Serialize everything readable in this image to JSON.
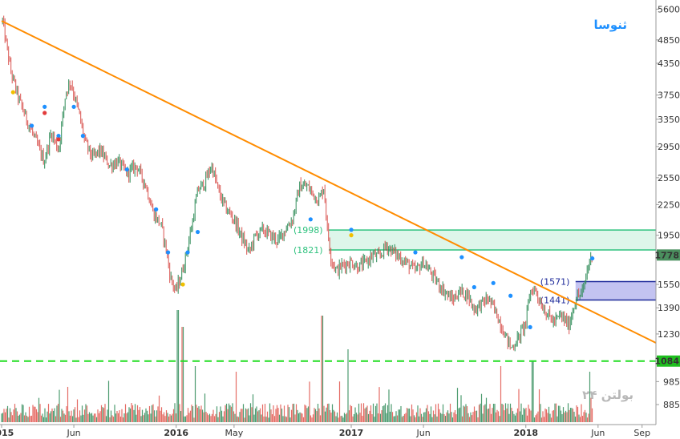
{
  "chart_data": {
    "type": "candlestick",
    "title": "",
    "watermark_top": "ثنوسا",
    "watermark_bottom": "بولتن ۲۴",
    "x_axis": {
      "type": "date",
      "start": "2015-01-01",
      "end": "2018-09-30",
      "ticks": [
        {
          "date": "2015-01-01",
          "label": "2015"
        },
        {
          "date": "2015-06-01",
          "label": "Jun"
        },
        {
          "date": "2016-01-01",
          "label": "2016"
        },
        {
          "date": "2016-05-01",
          "label": "May"
        },
        {
          "date": "2017-01-01",
          "label": "2017"
        },
        {
          "date": "2017-06-01",
          "label": "Jun"
        },
        {
          "date": "2018-01-01",
          "label": "2018"
        },
        {
          "date": "2018-06-01",
          "label": "Jun"
        },
        {
          "date": "2018-09-01",
          "label": "Sep"
        }
      ]
    },
    "y_axis": {
      "scale": "log",
      "range": [
        800,
        5800
      ],
      "ticks": [
        5600,
        4850,
        4350,
        3750,
        3350,
        2950,
        2550,
        2250,
        1950,
        1550,
        1390,
        1230,
        985,
        885
      ]
    },
    "price_series": {
      "name": "",
      "up_color": "#2e8b57",
      "down_color": "#d9534f",
      "points": [
        [
          "2015-01-03",
          5300
        ],
        [
          "2015-01-20",
          4200
        ],
        [
          "2015-02-05",
          3700
        ],
        [
          "2015-02-25",
          3300
        ],
        [
          "2015-03-15",
          3000
        ],
        [
          "2015-03-31",
          2750
        ],
        [
          "2015-04-15",
          3150
        ],
        [
          "2015-04-30",
          2900
        ],
        [
          "2015-05-15",
          3800
        ],
        [
          "2015-05-25",
          4000
        ],
        [
          "2015-06-10",
          3500
        ],
        [
          "2015-06-25",
          3000
        ],
        [
          "2015-07-10",
          2800
        ],
        [
          "2015-07-25",
          2900
        ],
        [
          "2015-08-15",
          2700
        ],
        [
          "2015-09-01",
          2750
        ],
        [
          "2015-09-20",
          2600
        ],
        [
          "2015-10-10",
          2700
        ],
        [
          "2015-10-30",
          2450
        ],
        [
          "2015-11-15",
          2150
        ],
        [
          "2015-11-30",
          2050
        ],
        [
          "2015-12-10",
          1850
        ],
        [
          "2015-12-20",
          1600
        ],
        [
          "2015-12-31",
          1500
        ],
        [
          "2016-01-10",
          1600
        ],
        [
          "2016-01-20",
          1750
        ],
        [
          "2016-02-01",
          2000
        ],
        [
          "2016-02-15",
          2400
        ],
        [
          "2016-03-01",
          2500
        ],
        [
          "2016-03-15",
          2700
        ],
        [
          "2016-04-01",
          2350
        ],
        [
          "2016-04-15",
          2200
        ],
        [
          "2016-05-01",
          2100
        ],
        [
          "2016-05-15",
          1950
        ],
        [
          "2016-06-01",
          1800
        ],
        [
          "2016-06-15",
          1950
        ],
        [
          "2016-07-01",
          2000
        ],
        [
          "2016-07-15",
          1950
        ],
        [
          "2016-08-01",
          1900
        ],
        [
          "2016-08-15",
          2000
        ],
        [
          "2016-08-31",
          2100
        ],
        [
          "2016-09-15",
          2450
        ],
        [
          "2016-10-01",
          2450
        ],
        [
          "2016-10-15",
          2350
        ],
        [
          "2016-10-25",
          2300
        ],
        [
          "2016-11-05",
          2450
        ],
        [
          "2016-11-12",
          2000
        ],
        [
          "2016-11-20",
          1750
        ],
        [
          "2016-12-01",
          1650
        ],
        [
          "2016-12-15",
          1700
        ],
        [
          "2017-01-01",
          1720
        ],
        [
          "2017-01-15",
          1680
        ],
        [
          "2017-02-01",
          1720
        ],
        [
          "2017-02-15",
          1780
        ],
        [
          "2017-03-01",
          1760
        ],
        [
          "2017-03-15",
          1860
        ],
        [
          "2017-03-31",
          1800
        ],
        [
          "2017-04-15",
          1750
        ],
        [
          "2017-05-01",
          1700
        ],
        [
          "2017-05-15",
          1650
        ],
        [
          "2017-06-01",
          1720
        ],
        [
          "2017-06-15",
          1640
        ],
        [
          "2017-07-01",
          1560
        ],
        [
          "2017-07-15",
          1500
        ],
        [
          "2017-08-01",
          1440
        ],
        [
          "2017-08-15",
          1500
        ],
        [
          "2017-09-01",
          1480
        ],
        [
          "2017-09-15",
          1380
        ],
        [
          "2017-10-01",
          1420
        ],
        [
          "2017-10-15",
          1450
        ],
        [
          "2017-11-01",
          1350
        ],
        [
          "2017-11-15",
          1250
        ],
        [
          "2017-12-01",
          1150
        ],
        [
          "2017-12-15",
          1200
        ],
        [
          "2018-01-01",
          1300
        ],
        [
          "2018-01-10",
          1500
        ],
        [
          "2018-01-20",
          1520
        ],
        [
          "2018-02-01",
          1420
        ],
        [
          "2018-02-15",
          1350
        ],
        [
          "2018-03-01",
          1300
        ],
        [
          "2018-03-15",
          1340
        ],
        [
          "2018-04-01",
          1280
        ],
        [
          "2018-04-15",
          1450
        ],
        [
          "2018-05-01",
          1500
        ],
        [
          "2018-05-10",
          1680
        ],
        [
          "2018-05-20",
          1778
        ]
      ]
    },
    "volume_series": {
      "name": "",
      "up_color": "#2e8b57",
      "down_color": "#e0524a",
      "spikes": [
        [
          "2016-01-05",
          1.0
        ],
        [
          "2016-01-15",
          0.85
        ],
        [
          "2016-02-10",
          0.5
        ],
        [
          "2016-05-05",
          0.45
        ],
        [
          "2016-11-01",
          0.95
        ],
        [
          "2016-12-25",
          0.65
        ],
        [
          "2017-11-10",
          0.5
        ],
        [
          "2018-01-15",
          0.55
        ],
        [
          "2018-05-15",
          0.45
        ]
      ]
    },
    "signal_markers": [
      {
        "date": "2015-01-25",
        "price": 3800,
        "color": "#f0c000"
      },
      {
        "date": "2015-03-05",
        "price": 3250,
        "color": "#1e90ff"
      },
      {
        "date": "2015-04-01",
        "price": 3550,
        "color": "#1e90ff"
      },
      {
        "date": "2015-04-01",
        "price": 3450,
        "color": "#e23b3b"
      },
      {
        "date": "2015-04-30",
        "price": 3100,
        "color": "#1e90ff"
      },
      {
        "date": "2015-04-30",
        "price": 3050,
        "color": "#e23b3b"
      },
      {
        "date": "2015-06-01",
        "price": 3550,
        "color": "#1e90ff"
      },
      {
        "date": "2015-06-20",
        "price": 3100,
        "color": "#1e90ff"
      },
      {
        "date": "2015-09-20",
        "price": 2650,
        "color": "#1e90ff"
      },
      {
        "date": "2015-11-20",
        "price": 2200,
        "color": "#1e90ff"
      },
      {
        "date": "2015-12-15",
        "price": 1800,
        "color": "#1e90ff"
      },
      {
        "date": "2016-01-15",
        "price": 1550,
        "color": "#f0c000"
      },
      {
        "date": "2016-01-25",
        "price": 1800,
        "color": "#1e90ff"
      },
      {
        "date": "2016-02-15",
        "price": 1980,
        "color": "#1e90ff"
      },
      {
        "date": "2016-10-08",
        "price": 2100,
        "color": "#1e90ff"
      },
      {
        "date": "2017-01-01",
        "price": 2000,
        "color": "#1e90ff"
      },
      {
        "date": "2017-01-01",
        "price": 1950,
        "color": "#f0c000"
      },
      {
        "date": "2017-05-15",
        "price": 1800,
        "color": "#1e90ff"
      },
      {
        "date": "2017-08-20",
        "price": 1760,
        "color": "#1e90ff"
      },
      {
        "date": "2017-09-15",
        "price": 1530,
        "color": "#1e90ff"
      },
      {
        "date": "2017-10-25",
        "price": 1560,
        "color": "#1e90ff"
      },
      {
        "date": "2017-11-30",
        "price": 1470,
        "color": "#1e90ff"
      },
      {
        "date": "2018-01-10",
        "price": 1270,
        "color": "#1e90ff"
      },
      {
        "date": "2018-05-20",
        "price": 1750,
        "color": "#1e90ff"
      }
    ],
    "trendline": {
      "color": "#ff8c00",
      "start": {
        "date": "2015-01-01",
        "price": 5300
      },
      "end": {
        "date": "2018-09-30",
        "price": 1180
      }
    },
    "zones": [
      {
        "color": "#2ec27e",
        "fill": "#d8f5e6",
        "top": 1998,
        "bottom": 1821,
        "start": "2016-11-15",
        "top_label": "(1998)",
        "bottom_label": "(1821)"
      },
      {
        "color": "#1e2a9a",
        "fill": "#b8b8ee",
        "top": 1571,
        "bottom": 1441,
        "start": "2018-04-15",
        "top_label": "(1571)",
        "bottom_label": "(1441)"
      }
    ],
    "support_line": {
      "price": 1084,
      "label": "1084",
      "color": "#22dd22"
    },
    "last_price": {
      "value": 1778,
      "label": "1778",
      "color": "#4a8f5e"
    },
    "grid": false,
    "legend": "none"
  }
}
